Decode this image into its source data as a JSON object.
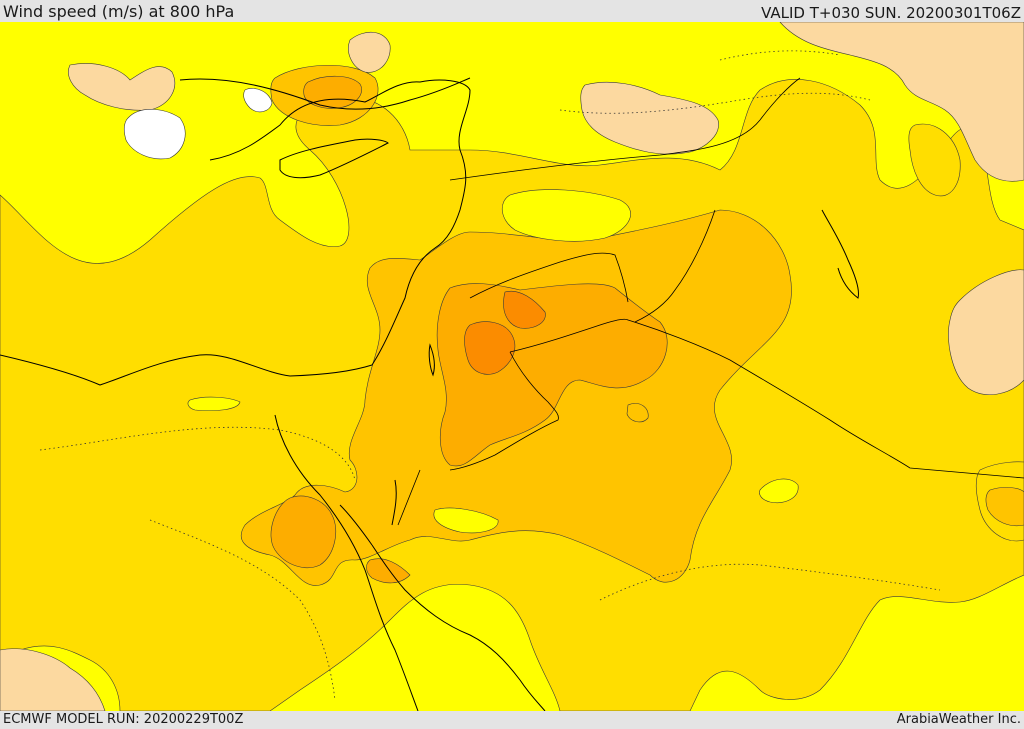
{
  "header": {
    "title": "Wind speed (m/s) at 800 hPa",
    "valid": "VALID T+030 SUN. 20200301T06Z"
  },
  "footer": {
    "model_run": "ECMWF MODEL RUN: 20200229T00Z",
    "credit": "ArabiaWeather Inc."
  },
  "colors": {
    "band_pale": "#fcd9a0",
    "band_white": "#ffffff",
    "band_yellow": "#ffff00",
    "band_gold": "#ffde00",
    "band_light_orange": "#ffc400",
    "band_orange": "#fdad00",
    "band_dark_orange": "#fb8c00",
    "coastline": "#000000"
  }
}
